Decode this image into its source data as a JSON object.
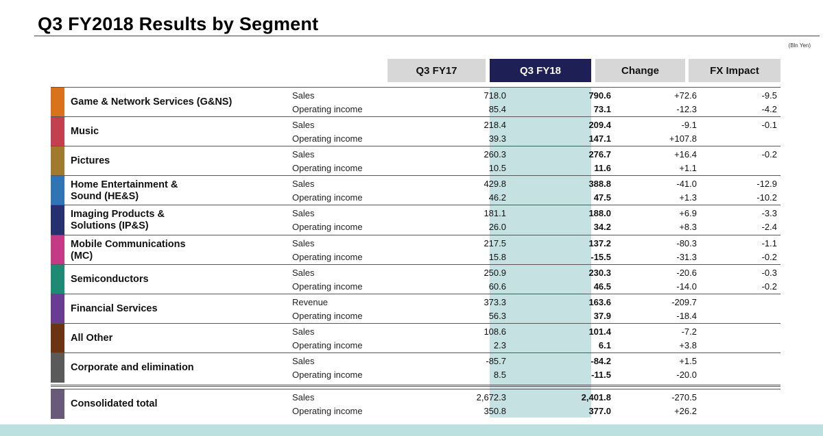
{
  "title": "Q3 FY2018 Results by Segment",
  "unit": "(Bln Yen)",
  "columns": {
    "fy17": "Q3 FY17",
    "fy18": "Q3 FY18",
    "change": "Change",
    "fx": "FX Impact"
  },
  "colors": {
    "header_gray": "#d7d7d7",
    "header_navy": "#1e1f55",
    "fy18_band": "#c5e1e2"
  },
  "segments": [
    {
      "name": "Game & Network Services (G&NS)",
      "color": "#d9731b",
      "rows": [
        {
          "label": "Sales",
          "fy17": "718.0",
          "fy18": "790.6",
          "change": "+72.6",
          "fx": "-9.5"
        },
        {
          "label": "Operating income",
          "fy17": "85.4",
          "fy18": "73.1",
          "change": "-12.3",
          "fx": "-4.2"
        }
      ]
    },
    {
      "name": "Music",
      "color": "#c2404f",
      "rows": [
        {
          "label": "Sales",
          "fy17": "218.4",
          "fy18": "209.4",
          "change": "-9.1",
          "fx": "-0.1"
        },
        {
          "label": "Operating income",
          "fy17": "39.3",
          "fy18": "147.1",
          "change": "+107.8",
          "fx": ""
        }
      ]
    },
    {
      "name": "Pictures",
      "color": "#a07a2d",
      "rows": [
        {
          "label": "Sales",
          "fy17": "260.3",
          "fy18": "276.7",
          "change": "+16.4",
          "fx": "-0.2"
        },
        {
          "label": "Operating income",
          "fy17": "10.5",
          "fy18": "11.6",
          "change": "+1.1",
          "fx": ""
        }
      ]
    },
    {
      "name": "Home Entertainment &\nSound (HE&S)",
      "color": "#2f74b5",
      "rows": [
        {
          "label": "Sales",
          "fy17": "429.8",
          "fy18": "388.8",
          "change": "-41.0",
          "fx": "-12.9"
        },
        {
          "label": "Operating income",
          "fy17": "46.2",
          "fy18": "47.5",
          "change": "+1.3",
          "fx": "-10.2"
        }
      ]
    },
    {
      "name": "Imaging Products &\nSolutions (IP&S)",
      "color": "#27306e",
      "rows": [
        {
          "label": "Sales",
          "fy17": "181.1",
          "fy18": "188.0",
          "change": "+6.9",
          "fx": "-3.3"
        },
        {
          "label": "Operating income",
          "fy17": "26.0",
          "fy18": "34.2",
          "change": "+8.3",
          "fx": "-2.4"
        }
      ]
    },
    {
      "name": "Mobile Communications\n(MC)",
      "color": "#c43b85",
      "rows": [
        {
          "label": "Sales",
          "fy17": "217.5",
          "fy18": "137.2",
          "change": "-80.3",
          "fx": "-1.1"
        },
        {
          "label": "Operating income",
          "fy17": "15.8",
          "fy18": "-15.5",
          "change": "-31.3",
          "fx": "-0.2"
        }
      ]
    },
    {
      "name": "Semiconductors",
      "color": "#1f8a73",
      "rows": [
        {
          "label": "Sales",
          "fy17": "250.9",
          "fy18": "230.3",
          "change": "-20.6",
          "fx": "-0.3"
        },
        {
          "label": "Operating income",
          "fy17": "60.6",
          "fy18": "46.5",
          "change": "-14.0",
          "fx": "-0.2"
        }
      ]
    },
    {
      "name": "Financial Services",
      "color": "#6a3c91",
      "rows": [
        {
          "label": "Revenue",
          "fy17": "373.3",
          "fy18": "163.6",
          "change": "-209.7",
          "fx": ""
        },
        {
          "label": "Operating income",
          "fy17": "56.3",
          "fy18": "37.9",
          "change": "-18.4",
          "fx": ""
        }
      ]
    },
    {
      "name": "All Other",
      "color": "#6b3412",
      "rows": [
        {
          "label": "Sales",
          "fy17": "108.6",
          "fy18": "101.4",
          "change": "-7.2",
          "fx": ""
        },
        {
          "label": "Operating income",
          "fy17": "2.3",
          "fy18": "6.1",
          "change": "+3.8",
          "fx": ""
        }
      ]
    },
    {
      "name": "Corporate and elimination",
      "color": "#5a5a5a",
      "rows": [
        {
          "label": "Sales",
          "fy17": "-85.7",
          "fy18": "-84.2",
          "change": "+1.5",
          "fx": ""
        },
        {
          "label": "Operating income",
          "fy17": "8.5",
          "fy18": "-11.5",
          "change": "-20.0",
          "fx": ""
        }
      ]
    }
  ],
  "total": {
    "name": "Consolidated total",
    "color": "#6a5a7a",
    "rows": [
      {
        "label": "Sales",
        "fy17": "2,672.3",
        "fy18": "2,401.8",
        "change": "-270.5",
        "fx": ""
      },
      {
        "label": "Operating income",
        "fy17": "350.8",
        "fy18": "377.0",
        "change": "+26.2",
        "fx": ""
      }
    ]
  }
}
